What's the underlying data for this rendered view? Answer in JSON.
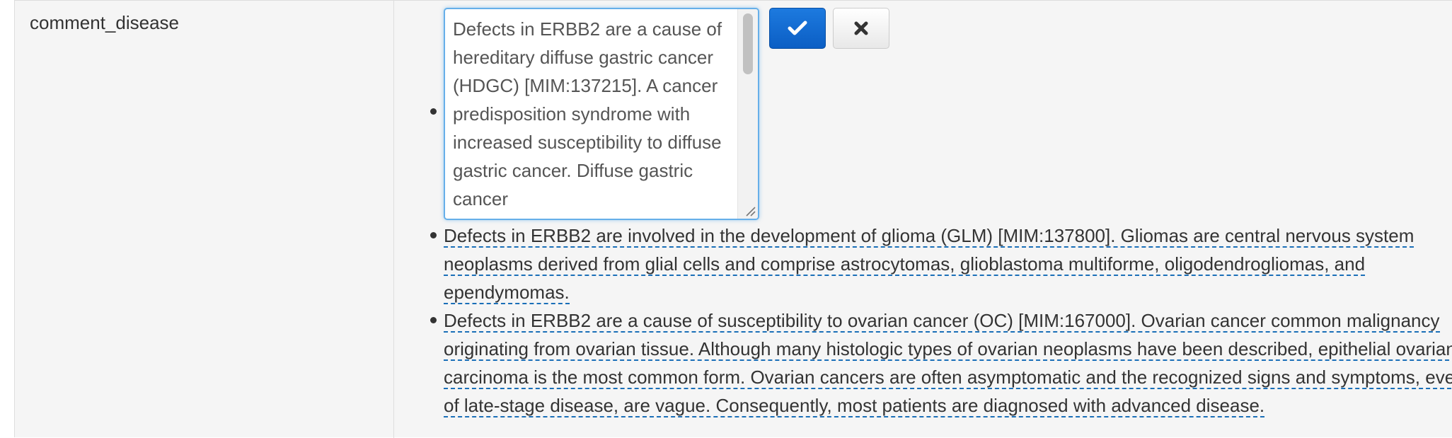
{
  "field": {
    "key_label": "comment_disease"
  },
  "editor": {
    "value": "Defects in ERBB2 are a cause of hereditary diffuse gastric cancer (HDGC) [MIM:137215]. A cancer predisposition syndrome with increased susceptibility to diffuse gastric cancer. Diffuse gastric cancer",
    "ok_icon": "check-icon",
    "cancel_icon": "close-icon"
  },
  "values": [
    {
      "text": "Defects in ERBB2 are involved in the development of glioma (GLM) [MIM:137800]. Gliomas are central nervous system neoplasms derived from glial cells and comprise astrocytomas, glioblastoma multiforme, oligodendrogliomas, and ependymomas."
    },
    {
      "text": "Defects in ERBB2 are a cause of susceptibility to ovarian cancer (OC) [MIM:167000]. Ovarian cancer common malignancy originating from ovarian tissue. Although many histologic types of ovarian neoplasms have been described, epithelial ovarian carcinoma is the most common form. Ovarian cancers are often asymptomatic and the recognized signs and symptoms, even of late-stage disease, are vague. Consequently, most patients are diagnosed with advanced disease."
    }
  ],
  "colors": {
    "primary": "#0b5ec4",
    "link_underline": "#1a6fb8",
    "focus": "#66afe9"
  }
}
